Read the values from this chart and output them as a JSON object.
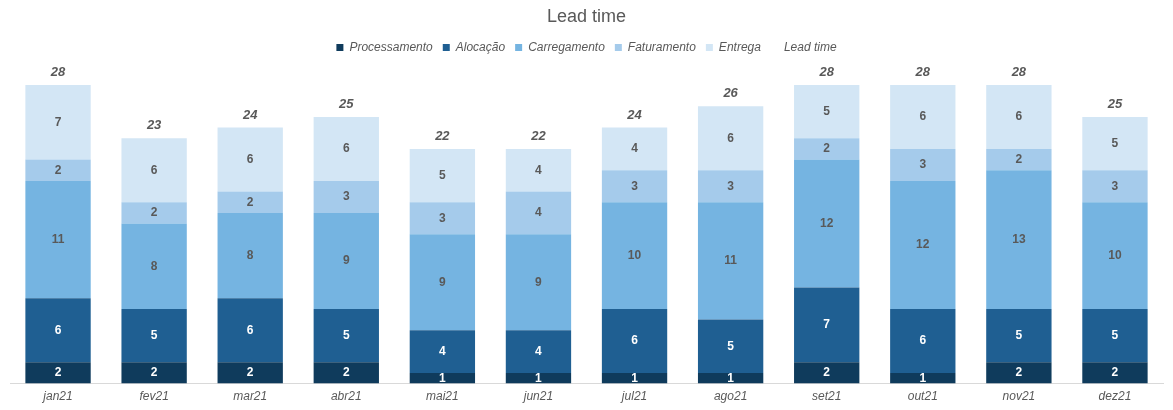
{
  "chart_data": {
    "type": "bar",
    "title": "Lead time",
    "stacked": true,
    "data_labels": true,
    "legend": "top",
    "grid": false,
    "tick_labels": "x",
    "categories": [
      "jan21",
      "fev21",
      "mar21",
      "abr21",
      "mai21",
      "jun21",
      "jul21",
      "ago21",
      "set21",
      "out21",
      "nov21",
      "dez21"
    ],
    "series": [
      {
        "name": "Processamento",
        "color": "#0f3b5c",
        "values": [
          2,
          2,
          2,
          2,
          1,
          1,
          1,
          1,
          2,
          1,
          2,
          2
        ]
      },
      {
        "name": "Alocação",
        "color": "#1f5f92",
        "values": [
          6,
          5,
          6,
          5,
          4,
          4,
          6,
          5,
          7,
          6,
          5,
          5
        ]
      },
      {
        "name": "Carregamento",
        "color": "#75b4e1",
        "values": [
          11,
          8,
          8,
          9,
          9,
          9,
          10,
          11,
          12,
          12,
          13,
          10
        ]
      },
      {
        "name": "Faturamento",
        "color": "#a5cbeb",
        "values": [
          2,
          2,
          2,
          3,
          3,
          4,
          3,
          3,
          2,
          3,
          2,
          3
        ]
      },
      {
        "name": "Entrega",
        "color": "#d3e6f5",
        "values": [
          7,
          6,
          6,
          6,
          5,
          4,
          4,
          6,
          5,
          6,
          6,
          5
        ]
      }
    ],
    "totals": [
      "28",
      "23",
      "24",
      "25",
      "22",
      "22",
      "24",
      "26",
      "28",
      "28",
      "28",
      "25"
    ],
    "annotations": [
      "Lead time"
    ]
  }
}
